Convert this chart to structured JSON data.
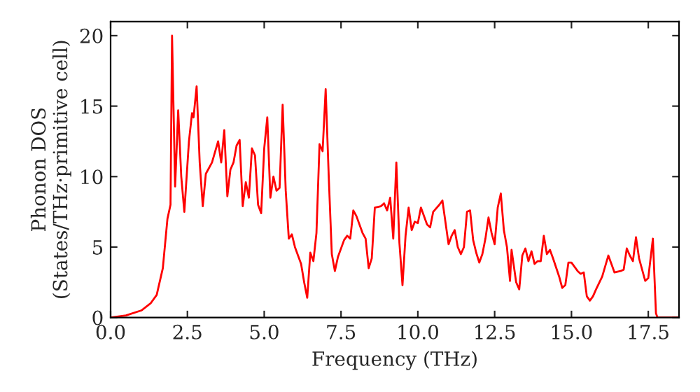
{
  "chart_data": {
    "type": "line",
    "xlabel": "Frequency (THz)",
    "ylabel": "Phonon DOS\n(States/THz·primitive cell)",
    "xlim": [
      0,
      18.5
    ],
    "ylim": [
      0,
      21
    ],
    "xticks": [
      {
        "value": 0,
        "label": "0.0"
      },
      {
        "value": 2.5,
        "label": "2.5"
      },
      {
        "value": 5,
        "label": "5.0"
      },
      {
        "value": 7.5,
        "label": "7.5"
      },
      {
        "value": 10,
        "label": "10.0"
      },
      {
        "value": 12.5,
        "label": "12.5"
      },
      {
        "value": 15,
        "label": "15.0"
      },
      {
        "value": 17.5,
        "label": "17.5"
      }
    ],
    "yticks": [
      0,
      5,
      10,
      15,
      20
    ],
    "grid": false,
    "legend": false,
    "marker": "none",
    "line_style": "solid",
    "x": [
      0,
      0.5,
      1.0,
      1.3,
      1.5,
      1.7,
      1.85,
      1.95,
      2.0,
      2.1,
      2.2,
      2.3,
      2.4,
      2.55,
      2.65,
      2.7,
      2.8,
      2.9,
      3.0,
      3.1,
      3.3,
      3.5,
      3.6,
      3.7,
      3.8,
      3.9,
      4.0,
      4.1,
      4.2,
      4.3,
      4.4,
      4.5,
      4.6,
      4.7,
      4.8,
      4.9,
      5.0,
      5.1,
      5.2,
      5.3,
      5.4,
      5.5,
      5.6,
      5.7,
      5.8,
      5.9,
      6.0,
      6.2,
      6.3,
      6.4,
      6.5,
      6.6,
      6.7,
      6.8,
      6.9,
      7.0,
      7.1,
      7.2,
      7.3,
      7.4,
      7.6,
      7.7,
      7.8,
      7.9,
      8.0,
      8.2,
      8.3,
      8.4,
      8.5,
      8.6,
      8.8,
      8.9,
      9.0,
      9.1,
      9.2,
      9.3,
      9.4,
      9.5,
      9.6,
      9.7,
      9.8,
      9.9,
      10.0,
      10.1,
      10.3,
      10.4,
      10.5,
      10.7,
      10.8,
      11.0,
      11.1,
      11.2,
      11.3,
      11.4,
      11.5,
      11.6,
      11.7,
      11.8,
      11.9,
      12.0,
      12.1,
      12.2,
      12.3,
      12.4,
      12.5,
      12.6,
      12.7,
      12.8,
      12.9,
      13.0,
      13.05,
      13.2,
      13.3,
      13.4,
      13.5,
      13.6,
      13.7,
      13.8,
      13.9,
      14.0,
      14.1,
      14.2,
      14.3,
      14.4,
      14.6,
      14.7,
      14.8,
      14.9,
      15.0,
      15.2,
      15.3,
      15.4,
      15.5,
      15.6,
      15.7,
      15.8,
      16.0,
      16.2,
      16.3,
      16.4,
      16.6,
      16.7,
      16.8,
      16.9,
      17.0,
      17.1,
      17.2,
      17.4,
      17.5,
      17.65,
      17.75,
      17.8,
      18.5
    ],
    "series": [
      {
        "color": "#ff0000",
        "values": [
          0,
          0.15,
          0.5,
          1.0,
          1.6,
          3.5,
          7,
          8,
          20,
          9.3,
          14.7,
          10,
          7.5,
          12.5,
          14.5,
          14.2,
          16.4,
          11,
          7.9,
          10.2,
          11,
          12.5,
          11,
          13.3,
          8.6,
          10.5,
          11,
          12.2,
          12.6,
          7.9,
          9.6,
          8.5,
          12,
          11.5,
          8,
          7.4,
          12,
          14.2,
          8.5,
          10,
          9,
          9.2,
          15.1,
          9,
          5.6,
          5.9,
          5,
          3.8,
          2.5,
          1.4,
          4.6,
          4.0,
          6,
          12.3,
          11.8,
          16.2,
          10,
          4.5,
          3.3,
          4.3,
          5.5,
          5.8,
          5.6,
          7.6,
          7.2,
          6,
          5.6,
          3.5,
          4.2,
          7.8,
          7.9,
          8.1,
          7.6,
          8.5,
          5.6,
          11,
          5.3,
          2.3,
          5.8,
          7.8,
          6.2,
          6.8,
          6.7,
          7.8,
          6.6,
          6.4,
          7.5,
          8,
          8.3,
          5.2,
          5.8,
          6.2,
          5,
          4.5,
          5,
          7.5,
          7.6,
          5.5,
          4.6,
          3.9,
          4.5,
          5.6,
          7.1,
          6,
          5.2,
          7.8,
          8.8,
          6.2,
          5,
          2.6,
          4.8,
          2.5,
          2,
          4.4,
          4.9,
          4,
          4.7,
          3.8,
          4,
          4,
          5.8,
          4.5,
          4.8,
          4.2,
          2.9,
          2.1,
          2.3,
          3.9,
          3.9,
          3.3,
          3.1,
          3.2,
          1.5,
          1.2,
          1.5,
          2,
          2.9,
          4.4,
          3.8,
          3.2,
          3.3,
          3.4,
          4.9,
          4.4,
          4,
          5.7,
          4.2,
          2.6,
          2.8,
          5.6,
          0.3,
          0,
          0
        ]
      }
    ]
  }
}
